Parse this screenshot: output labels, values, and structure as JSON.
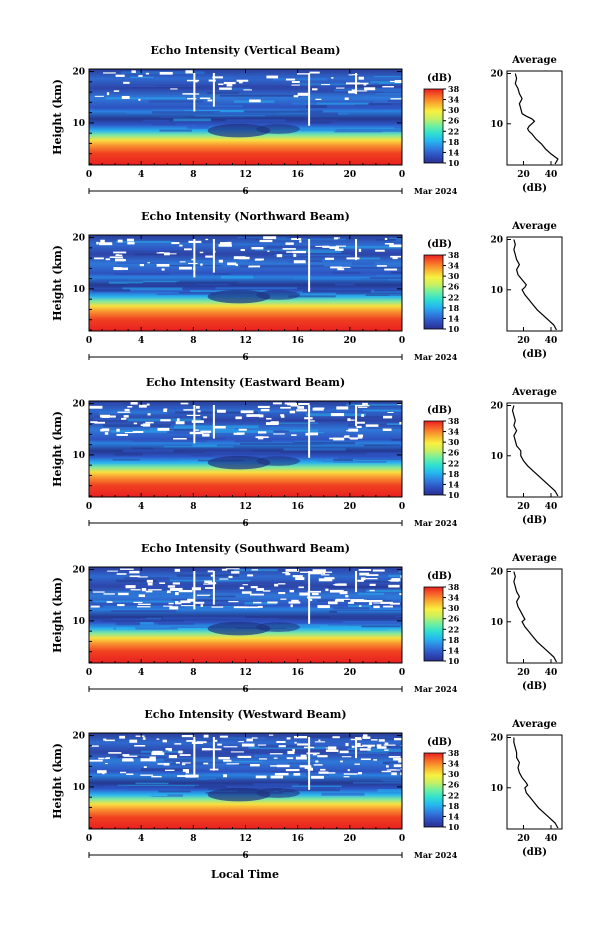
{
  "chart_data": [
    {
      "type": "heatmap",
      "title": "Echo Intensity (Vertical Beam)",
      "ylabel": "Height (km)",
      "x_ticks": [
        "0",
        "4",
        "8",
        "12",
        "16",
        "20",
        "0"
      ],
      "xlim": [
        0,
        24
      ],
      "y_ticks": [
        "10",
        "20"
      ],
      "ylim": [
        1.8,
        20.5
      ],
      "day_label": "6",
      "month_label": "Mar 2024",
      "colorbar": {
        "unit": "(dB)",
        "ticks": [
          "10",
          "14",
          "18",
          "22",
          "26",
          "30",
          "34",
          "38"
        ],
        "range": [
          10,
          38
        ]
      },
      "average": {
        "title": "Average",
        "xlabel": "(dB)",
        "x_ticks": [
          "20",
          "40"
        ],
        "y_ticks": [
          "10",
          "20"
        ],
        "xlim": [
          8,
          48
        ],
        "height_km": [
          2.0,
          3.0,
          4.0,
          5.0,
          6.0,
          7.0,
          8.0,
          8.5,
          9.0,
          9.5,
          10.0,
          10.5,
          11.0,
          11.5,
          12.0,
          13.0,
          14.0,
          15.0,
          16.0,
          17.0,
          18.0,
          19.0,
          20.0
        ],
        "intensity_db": [
          43,
          45,
          40,
          36,
          33,
          29,
          26,
          24,
          23,
          24,
          26,
          28,
          26,
          22,
          19,
          18,
          17,
          19,
          17,
          16,
          14,
          15,
          14
        ]
      }
    },
    {
      "type": "heatmap",
      "title": "Echo Intensity (Northward Beam)",
      "ylabel": "Height (km)",
      "x_ticks": [
        "0",
        "4",
        "8",
        "12",
        "16",
        "20",
        "0"
      ],
      "xlim": [
        0,
        24
      ],
      "y_ticks": [
        "10",
        "20"
      ],
      "ylim": [
        1.8,
        20.5
      ],
      "day_label": "6",
      "month_label": "Mar 2024",
      "colorbar": {
        "unit": "(dB)",
        "ticks": [
          "10",
          "14",
          "18",
          "22",
          "26",
          "30",
          "34",
          "38"
        ],
        "range": [
          10,
          38
        ]
      },
      "average": {
        "title": "Average",
        "xlabel": "(dB)",
        "x_ticks": [
          "20",
          "40"
        ],
        "y_ticks": [
          "10",
          "20"
        ],
        "xlim": [
          8,
          48
        ],
        "height_km": [
          2.0,
          3.0,
          4.0,
          5.0,
          6.0,
          7.0,
          8.0,
          9.0,
          10.0,
          10.5,
          11.0,
          12.0,
          13.0,
          14.0,
          15.0,
          16.0,
          17.0,
          18.0,
          19.0,
          20.0
        ],
        "intensity_db": [
          44,
          42,
          38,
          34,
          30,
          27,
          24,
          21,
          19,
          21,
          22,
          19,
          16,
          15,
          17,
          15,
          14,
          13,
          14,
          13
        ]
      }
    },
    {
      "type": "heatmap",
      "title": "Echo Intensity (Eastward Beam)",
      "ylabel": "Height (km)",
      "x_ticks": [
        "0",
        "4",
        "8",
        "12",
        "16",
        "20",
        "0"
      ],
      "xlim": [
        0,
        24
      ],
      "y_ticks": [
        "10",
        "20"
      ],
      "ylim": [
        1.8,
        20.5
      ],
      "day_label": "6",
      "month_label": "Mar 2024",
      "colorbar": {
        "unit": "(dB)",
        "ticks": [
          "10",
          "14",
          "18",
          "22",
          "26",
          "30",
          "34",
          "38"
        ],
        "range": [
          10,
          38
        ]
      },
      "average": {
        "title": "Average",
        "xlabel": "(dB)",
        "x_ticks": [
          "20",
          "40"
        ],
        "y_ticks": [
          "10",
          "20"
        ],
        "xlim": [
          8,
          48
        ],
        "height_km": [
          2.0,
          3.0,
          4.0,
          5.0,
          6.0,
          7.0,
          8.0,
          9.0,
          10.0,
          11.0,
          12.0,
          13.0,
          14.0,
          15.0,
          16.0,
          17.0,
          18.0,
          19.0,
          20.0
        ],
        "intensity_db": [
          45,
          43,
          39,
          35,
          31,
          27,
          23,
          20,
          18,
          18,
          15,
          14,
          13,
          15,
          13,
          14,
          13,
          12,
          13
        ]
      }
    },
    {
      "type": "heatmap",
      "title": "Echo Intensity (Southward Beam)",
      "ylabel": "Height (km)",
      "x_ticks": [
        "0",
        "4",
        "8",
        "12",
        "16",
        "20",
        "0"
      ],
      "xlim": [
        0,
        24
      ],
      "y_ticks": [
        "10",
        "20"
      ],
      "ylim": [
        1.8,
        20.5
      ],
      "day_label": "6",
      "month_label": "Mar 2024",
      "colorbar": {
        "unit": "(dB)",
        "ticks": [
          "10",
          "14",
          "18",
          "22",
          "26",
          "30",
          "34",
          "38"
        ],
        "range": [
          10,
          38
        ]
      },
      "average": {
        "title": "Average",
        "xlabel": "(dB)",
        "x_ticks": [
          "20",
          "40"
        ],
        "y_ticks": [
          "10",
          "20"
        ],
        "xlim": [
          8,
          48
        ],
        "height_km": [
          2.0,
          3.0,
          4.0,
          5.0,
          6.0,
          7.0,
          8.0,
          9.0,
          10.0,
          10.5,
          11.0,
          12.0,
          13.0,
          14.0,
          15.0,
          16.0,
          17.0,
          18.0,
          19.0,
          20.0
        ],
        "intensity_db": [
          44,
          42,
          38,
          34,
          30,
          27,
          24,
          21,
          19,
          21,
          20,
          18,
          16,
          15,
          17,
          15,
          14,
          13,
          14,
          13
        ]
      }
    },
    {
      "type": "heatmap",
      "title": "Echo Intensity (Westward Beam)",
      "ylabel": "Height (km)",
      "x_ticks": [
        "0",
        "4",
        "8",
        "12",
        "16",
        "20",
        "0"
      ],
      "xlim": [
        0,
        24
      ],
      "y_ticks": [
        "10",
        "20"
      ],
      "ylim": [
        1.8,
        20.5
      ],
      "day_label": "6",
      "month_label": "Mar 2024",
      "colorbar": {
        "unit": "(dB)",
        "ticks": [
          "10",
          "14",
          "18",
          "22",
          "26",
          "30",
          "34",
          "38"
        ],
        "range": [
          10,
          38
        ]
      },
      "average": {
        "title": "Average",
        "xlabel": "(dB)",
        "x_ticks": [
          "20",
          "40"
        ],
        "y_ticks": [
          "10",
          "20"
        ],
        "xlim": [
          8,
          48
        ],
        "height_km": [
          2.0,
          3.0,
          4.0,
          5.0,
          6.0,
          7.0,
          8.0,
          9.0,
          10.0,
          10.5,
          11.0,
          12.0,
          13.0,
          14.0,
          15.0,
          16.0,
          17.0,
          18.0,
          19.0,
          20.0
        ],
        "intensity_db": [
          45,
          43,
          39,
          35,
          31,
          28,
          25,
          22,
          21,
          23,
          22,
          19,
          17,
          16,
          17,
          15,
          15,
          14,
          13,
          13
        ]
      }
    }
  ],
  "footer": {
    "xlabel": "Local Time"
  },
  "colors": {
    "scale": [
      "#2a2f8f",
      "#2e4fc0",
      "#2f7fe0",
      "#25b8f0",
      "#2fe0d0",
      "#6ef0a0",
      "#c8f060",
      "#f8f040",
      "#f8b030",
      "#f86828",
      "#e82020"
    ]
  }
}
